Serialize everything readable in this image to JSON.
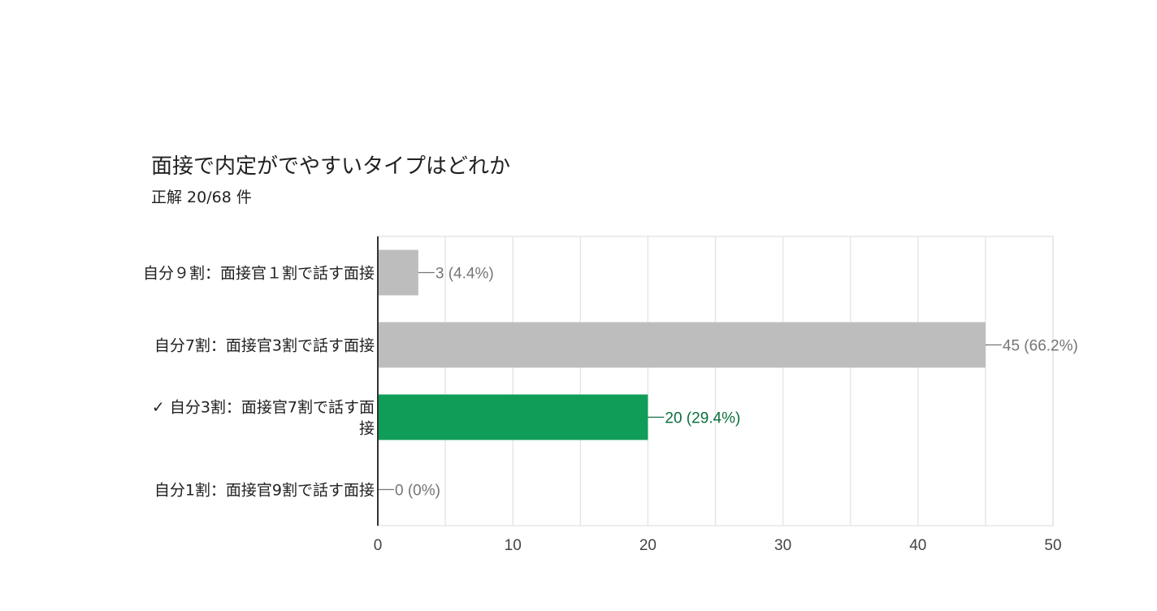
{
  "header": {
    "title": "面接で内定がでやすいタイプはどれか",
    "subtitle": "正解 20/68 件"
  },
  "chart_data": {
    "type": "bar",
    "orientation": "horizontal",
    "categories": [
      "自分９割：面接官１割で話す面接",
      "自分7割：面接官3割で話す面接",
      "✓ 自分3割：面接官7割で話す面接",
      "自分1割：面接官9割で話す面接"
    ],
    "values": [
      3,
      45,
      20,
      0
    ],
    "value_labels": [
      "3 (4.4%)",
      "45 (66.2%)",
      "20 (29.4%)",
      "0 (0%)"
    ],
    "correct": [
      false,
      false,
      true,
      false
    ],
    "xlim": [
      0,
      50
    ],
    "xticks": [
      "0",
      "10",
      "20",
      "30",
      "40",
      "50"
    ],
    "grid": true,
    "colors": {
      "bar": "#bdbdbd",
      "bar_correct": "#0f9d58",
      "label": "#757575",
      "label_correct": "#0b6e3e",
      "grid": "#e6e6e6",
      "axis": "#333333"
    }
  }
}
